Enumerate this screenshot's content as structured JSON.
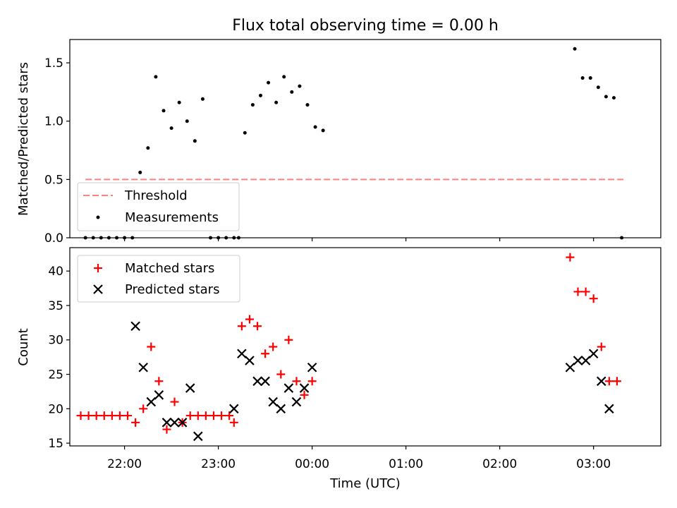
{
  "chart_data": {
    "title": "Flux total observing time = 0.00 h",
    "xlabel": "Time (UTC)",
    "x_ticks": [
      "22:00",
      "23:00",
      "00:00",
      "01:00",
      "02:00",
      "03:00"
    ],
    "x_range": [
      "21:25",
      "03:43"
    ],
    "panels": [
      {
        "type": "scatter",
        "ylabel": "Matched/Predicted stars",
        "ylim": [
          0,
          1.7
        ],
        "y_ticks": [
          "0.0",
          "0.5",
          "1.0",
          "1.5"
        ],
        "legend": {
          "position": "lower-left",
          "entries": [
            "Threshold",
            "Measurements"
          ]
        },
        "threshold": {
          "name": "Threshold",
          "value": 0.5,
          "x_start": "21:35",
          "x_end": "03:20",
          "color": "#ff8080",
          "style": "dashed"
        },
        "series": [
          {
            "name": "Measurements",
            "marker": "dot",
            "color": "#000000",
            "points": [
              [
                "21:35",
                0.0
              ],
              [
                "21:40",
                0.0
              ],
              [
                "21:45",
                0.0
              ],
              [
                "21:50",
                0.0
              ],
              [
                "21:55",
                0.0
              ],
              [
                "22:00",
                0.0
              ],
              [
                "22:05",
                0.0
              ],
              [
                "22:10",
                0.56
              ],
              [
                "22:15",
                0.77
              ],
              [
                "22:20",
                1.38
              ],
              [
                "22:25",
                1.09
              ],
              [
                "22:30",
                0.94
              ],
              [
                "22:35",
                1.16
              ],
              [
                "22:40",
                1.0
              ],
              [
                "22:45",
                0.83
              ],
              [
                "22:50",
                1.19
              ],
              [
                "22:55",
                0.0
              ],
              [
                "23:00",
                0.0
              ],
              [
                "23:05",
                0.0
              ],
              [
                "23:10",
                0.0
              ],
              [
                "23:13",
                0.0
              ],
              [
                "23:17",
                0.9
              ],
              [
                "23:22",
                1.14
              ],
              [
                "23:27",
                1.22
              ],
              [
                "23:32",
                1.33
              ],
              [
                "23:37",
                1.16
              ],
              [
                "23:42",
                1.38
              ],
              [
                "23:47",
                1.25
              ],
              [
                "23:52",
                1.3
              ],
              [
                "23:57",
                1.14
              ],
              [
                "00:02",
                0.95
              ],
              [
                "00:07",
                0.92
              ],
              [
                "02:48",
                1.62
              ],
              [
                "02:53",
                1.37
              ],
              [
                "02:58",
                1.37
              ],
              [
                "03:03",
                1.29
              ],
              [
                "03:08",
                1.21
              ],
              [
                "03:13",
                1.2
              ],
              [
                "03:18",
                0.0
              ]
            ]
          }
        ]
      },
      {
        "type": "scatter",
        "ylabel": "Count",
        "ylim": [
          14.6,
          43.4
        ],
        "y_ticks": [
          "15",
          "20",
          "25",
          "30",
          "35",
          "40"
        ],
        "legend": {
          "position": "top-left",
          "entries": [
            "Matched stars",
            "Predicted stars"
          ]
        },
        "series": [
          {
            "name": "Matched stars",
            "marker": "plus",
            "color": "#ff0000",
            "points": [
              [
                "21:32",
                19
              ],
              [
                "21:37",
                19
              ],
              [
                "21:42",
                19
              ],
              [
                "21:47",
                19
              ],
              [
                "21:52",
                19
              ],
              [
                "21:57",
                19
              ],
              [
                "22:02",
                19
              ],
              [
                "22:07",
                18
              ],
              [
                "22:12",
                20
              ],
              [
                "22:17",
                29
              ],
              [
                "22:22",
                24
              ],
              [
                "22:27",
                17
              ],
              [
                "22:32",
                21
              ],
              [
                "22:37",
                18
              ],
              [
                "22:42",
                19
              ],
              [
                "22:47",
                19
              ],
              [
                "22:52",
                19
              ],
              [
                "22:57",
                19
              ],
              [
                "23:02",
                19
              ],
              [
                "23:07",
                19
              ],
              [
                "23:10",
                18
              ],
              [
                "23:15",
                32
              ],
              [
                "23:20",
                33
              ],
              [
                "23:25",
                32
              ],
              [
                "23:30",
                28
              ],
              [
                "23:35",
                29
              ],
              [
                "23:40",
                25
              ],
              [
                "23:45",
                30
              ],
              [
                "23:50",
                24
              ],
              [
                "23:55",
                22
              ],
              [
                "00:00",
                24
              ],
              [
                "02:45",
                42
              ],
              [
                "02:50",
                37
              ],
              [
                "02:55",
                37
              ],
              [
                "03:00",
                36
              ],
              [
                "03:05",
                29
              ],
              [
                "03:10",
                24
              ],
              [
                "03:15",
                24
              ]
            ]
          },
          {
            "name": "Predicted stars",
            "marker": "x",
            "color": "#000000",
            "points": [
              [
                "22:07",
                32
              ],
              [
                "22:12",
                26
              ],
              [
                "22:17",
                21
              ],
              [
                "22:22",
                22
              ],
              [
                "22:27",
                18
              ],
              [
                "22:32",
                18
              ],
              [
                "22:37",
                18
              ],
              [
                "22:42",
                23
              ],
              [
                "22:47",
                16
              ],
              [
                "23:10",
                20
              ],
              [
                "23:15",
                28
              ],
              [
                "23:20",
                27
              ],
              [
                "23:25",
                24
              ],
              [
                "23:30",
                24
              ],
              [
                "23:35",
                21
              ],
              [
                "23:40",
                20
              ],
              [
                "23:45",
                23
              ],
              [
                "23:50",
                21
              ],
              [
                "23:55",
                23
              ],
              [
                "00:00",
                26
              ],
              [
                "02:45",
                26
              ],
              [
                "02:50",
                27
              ],
              [
                "02:55",
                27
              ],
              [
                "03:00",
                28
              ],
              [
                "03:05",
                24
              ],
              [
                "03:10",
                20
              ]
            ]
          }
        ]
      }
    ]
  }
}
